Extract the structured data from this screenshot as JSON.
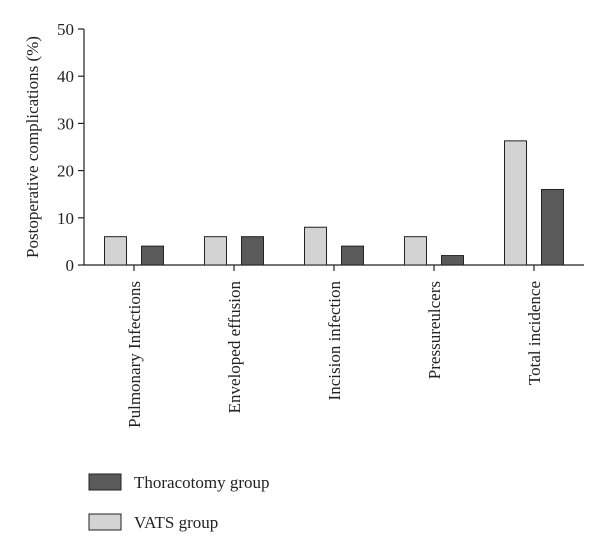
{
  "chart_data": {
    "type": "bar",
    "title": "",
    "xlabel": "",
    "ylabel": "Postoperative complications (%)",
    "ylim": [
      0,
      50
    ],
    "yticks": [
      0,
      10,
      20,
      30,
      40,
      50
    ],
    "categories": [
      "Pulmonary Infections",
      "Enveloped effusion",
      "Incision infection",
      "Pressureulcers",
      "Total incidence"
    ],
    "series": [
      {
        "name": "VATS group",
        "color": "#d3d3d3",
        "values": [
          6,
          6,
          8,
          6,
          26.3
        ]
      },
      {
        "name": "Thoracotomy group",
        "color": "#5a5a5a",
        "values": [
          4,
          6,
          4,
          2,
          16
        ]
      }
    ],
    "legend": [
      {
        "label": "Thoracotomy group",
        "color": "#5a5a5a"
      },
      {
        "label": "VATS group",
        "color": "#d3d3d3"
      }
    ],
    "legend_position": "bottom-left",
    "grid": false
  }
}
